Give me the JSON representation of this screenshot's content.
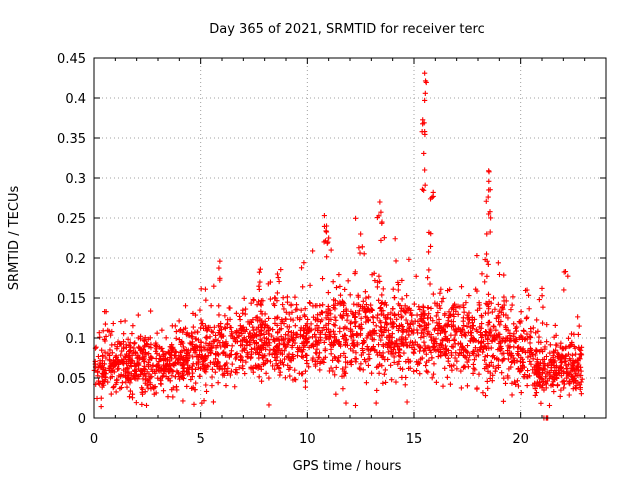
{
  "chart_data": {
    "type": "scatter",
    "title": "Day 365 of 2021, SRMTID for receiver terc",
    "xlabel": "GPS time / hours",
    "ylabel": "SRMTID / TECUs",
    "xlim": [
      0,
      24
    ],
    "ylim": [
      0,
      0.45
    ],
    "xticks": [
      0,
      5,
      10,
      15,
      20
    ],
    "xtick_labels": [
      "0",
      "5",
      "10",
      "15",
      "20"
    ],
    "yticks": [
      0,
      0.05,
      0.1,
      0.15,
      0.2,
      0.25,
      0.3,
      0.35,
      0.4,
      0.45
    ],
    "ytick_labels": [
      "0",
      "0.05",
      "0.1",
      "0.15",
      "0.2",
      "0.25",
      "0.3",
      "0.35",
      "0.4",
      "0.45"
    ],
    "grid": true,
    "marker": "plus",
    "marker_color": "#ff0000",
    "x_extent": [
      0,
      22.9
    ],
    "baseline_profile": [
      [
        0,
        0.065
      ],
      [
        2,
        0.068
      ],
      [
        3,
        0.062
      ],
      [
        4,
        0.07
      ],
      [
        5,
        0.08
      ],
      [
        6,
        0.085
      ],
      [
        7.5,
        0.09
      ],
      [
        9,
        0.095
      ],
      [
        10.5,
        0.1
      ],
      [
        12,
        0.105
      ],
      [
        13,
        0.11
      ],
      [
        14.5,
        0.105
      ],
      [
        16,
        0.1
      ],
      [
        17,
        0.095
      ],
      [
        18,
        0.1
      ],
      [
        19,
        0.1
      ],
      [
        20,
        0.075
      ],
      [
        21,
        0.062
      ],
      [
        22.9,
        0.065
      ]
    ],
    "spikes": [
      {
        "x": 0.5,
        "y": 0.133
      },
      {
        "x": 5.9,
        "y": 0.196
      },
      {
        "x": 7.8,
        "y": 0.186
      },
      {
        "x": 8.6,
        "y": 0.18
      },
      {
        "x": 10.8,
        "y": 0.253
      },
      {
        "x": 10.9,
        "y": 0.24
      },
      {
        "x": 11.0,
        "y": 0.225
      },
      {
        "x": 12.5,
        "y": 0.23
      },
      {
        "x": 13.4,
        "y": 0.27
      },
      {
        "x": 13.5,
        "y": 0.245
      },
      {
        "x": 15.5,
        "y": 0.431
      },
      {
        "x": 15.5,
        "y": 0.397
      },
      {
        "x": 15.5,
        "y": 0.358
      },
      {
        "x": 15.5,
        "y": 0.31
      },
      {
        "x": 15.9,
        "y": 0.282
      },
      {
        "x": 15.7,
        "y": 0.232
      },
      {
        "x": 18.5,
        "y": 0.309
      },
      {
        "x": 18.5,
        "y": 0.285
      },
      {
        "x": 18.5,
        "y": 0.255
      },
      {
        "x": 18.4,
        "y": 0.205
      },
      {
        "x": 20.3,
        "y": 0.16
      },
      {
        "x": 21.0,
        "y": 0.162
      },
      {
        "x": 22.1,
        "y": 0.183
      },
      {
        "x": 21.2,
        "y": 0.0
      }
    ],
    "approx_point_count": 2600
  }
}
